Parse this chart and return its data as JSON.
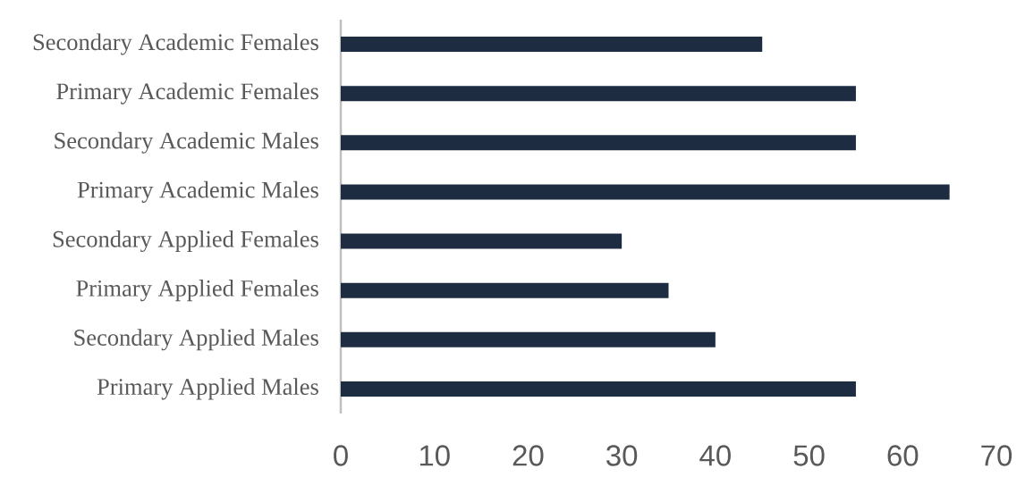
{
  "chart_data": {
    "type": "bar",
    "orientation": "horizontal",
    "categories": [
      "Secondary Academic Females",
      "Primary Academic Females",
      "Secondary Academic Males",
      "Primary Academic Males",
      "Secondary Applied Females",
      "Primary Applied Females",
      "Secondary Applied Males",
      "Primary Applied Males"
    ],
    "values": [
      45,
      55,
      55,
      65,
      30,
      35,
      40,
      55
    ],
    "color": "#1d2c41",
    "xlim": [
      0,
      70
    ],
    "xticks": [
      0,
      10,
      20,
      30,
      40,
      50,
      60,
      70
    ]
  }
}
